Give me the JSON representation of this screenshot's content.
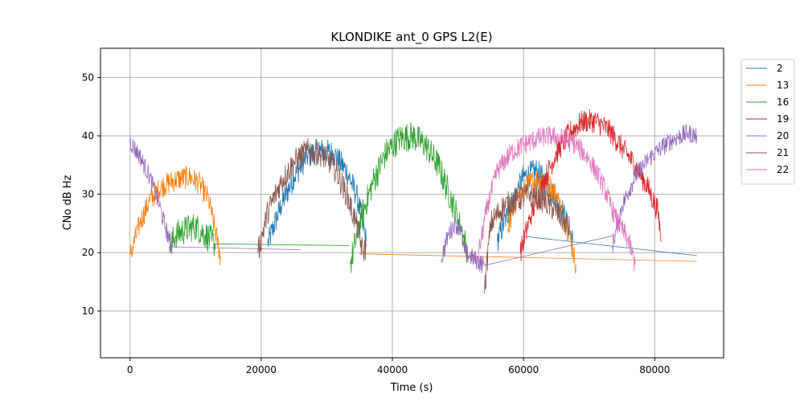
{
  "chart_data": {
    "type": "line",
    "title": "KLONDIKE ant_0 GPS L2(E)",
    "xlabel": "Time (s)",
    "ylabel": "CNo dB Hz",
    "xlim": [
      -4500,
      90500
    ],
    "ylim": [
      2,
      55
    ],
    "xticks": [
      0,
      20000,
      40000,
      60000,
      80000
    ],
    "xtick_labels": [
      "0",
      "20000",
      "40000",
      "60000",
      "80000"
    ],
    "yticks": [
      10,
      20,
      30,
      40,
      50
    ],
    "ytick_labels": [
      "10",
      "20",
      "30",
      "40",
      "50"
    ],
    "grid": true,
    "legend_position": "outside-right-top",
    "series": [
      {
        "name": "2",
        "color": "#1f77b4",
        "noise": 2.2,
        "x": [
          21000,
          23000,
          25000,
          27000,
          29000,
          31000,
          33000,
          34500,
          35500,
          36000,
          60000,
          86400,
          56000,
          58000,
          60000,
          62000,
          64000,
          66000,
          67500
        ],
        "y": [
          21.5,
          28,
          33,
          36.5,
          37.5,
          37,
          34,
          30,
          25,
          22,
          22.8,
          19.5,
          22,
          28,
          33,
          34,
          31,
          27,
          22
        ],
        "breaks_after": [
          9,
          11
        ]
      },
      {
        "name": "13",
        "color": "#ff7f0e",
        "noise": 2.0,
        "x": [
          0,
          1500,
          3000,
          5000,
          7000,
          9000,
          10500,
          12000,
          13500,
          13800,
          35000,
          86400,
          57500,
          59000,
          61000,
          63000,
          65000,
          67000,
          68000
        ],
        "y": [
          19.5,
          25,
          29,
          31.5,
          32.5,
          33,
          32,
          29,
          21,
          19,
          19.8,
          18.5,
          24,
          29,
          32,
          33,
          30,
          23,
          18
        ],
        "breaks_after": [
          9,
          11
        ]
      },
      {
        "name": "16",
        "color": "#2ca02c",
        "noise": 2.5,
        "x": [
          6000,
          7000,
          8500,
          10000,
          11500,
          12500,
          13000,
          33400,
          33600,
          35000,
          37000,
          39000,
          41000,
          43000,
          45000,
          47000,
          49000,
          50500,
          51500
        ],
        "y": [
          21,
          23,
          24,
          24.5,
          23,
          22,
          21.5,
          21.2,
          18,
          25,
          32,
          37,
          39.5,
          40,
          38.5,
          35,
          29,
          24,
          20
        ],
        "breaks_after": [
          7
        ]
      },
      {
        "name": "19",
        "color": "#d62728",
        "noise": 2.0,
        "x": [
          59500,
          61000,
          63000,
          65000,
          67000,
          69000,
          71000,
          73000,
          75000,
          77000,
          79000,
          80500,
          81000
        ],
        "y": [
          20,
          26,
          32,
          37,
          40.5,
          42.5,
          42.5,
          41,
          38,
          35,
          31,
          27,
          22
        ],
        "breaks_after": []
      },
      {
        "name": "20",
        "color": "#9467bd",
        "noise": 1.6,
        "x": [
          0,
          1500,
          3000,
          4500,
          6000,
          6500,
          26000,
          47500,
          48500,
          49500,
          50500,
          51000,
          54000,
          74000,
          73500,
          75000,
          77000,
          79000,
          81000,
          83000,
          85000,
          86400
        ],
        "y": [
          39,
          36.5,
          33,
          28,
          22,
          21,
          20.5,
          19,
          23,
          25,
          24,
          20,
          17.8,
          23,
          21,
          28,
          33,
          36,
          38,
          39.5,
          40.5,
          40
        ],
        "breaks_after": [
          6,
          13
        ]
      },
      {
        "name": "21",
        "color": "#8c564b",
        "noise": 2.2,
        "x": [
          19500,
          21000,
          23000,
          25000,
          27000,
          29000,
          31000,
          33000,
          34500,
          35500,
          36000,
          54000,
          55000,
          57000,
          59000,
          61000,
          63000,
          65000,
          67000
        ],
        "y": [
          20,
          27,
          32,
          35.5,
          37.5,
          37,
          35,
          30,
          25,
          20,
          21,
          13,
          25,
          28,
          29,
          30,
          29,
          27,
          24
        ],
        "breaks_after": [
          10
        ]
      },
      {
        "name": "22",
        "color": "#e377c2",
        "noise": 1.8,
        "x": [
          53000,
          54500,
          56000,
          58000,
          60000,
          62000,
          64000,
          66000,
          68000,
          70000,
          72000,
          74000,
          76000,
          77000
        ],
        "y": [
          19,
          28,
          34,
          37,
          38.5,
          39.5,
          40,
          39.5,
          38.5,
          36,
          32,
          26,
          22,
          18
        ],
        "breaks_after": []
      }
    ]
  }
}
